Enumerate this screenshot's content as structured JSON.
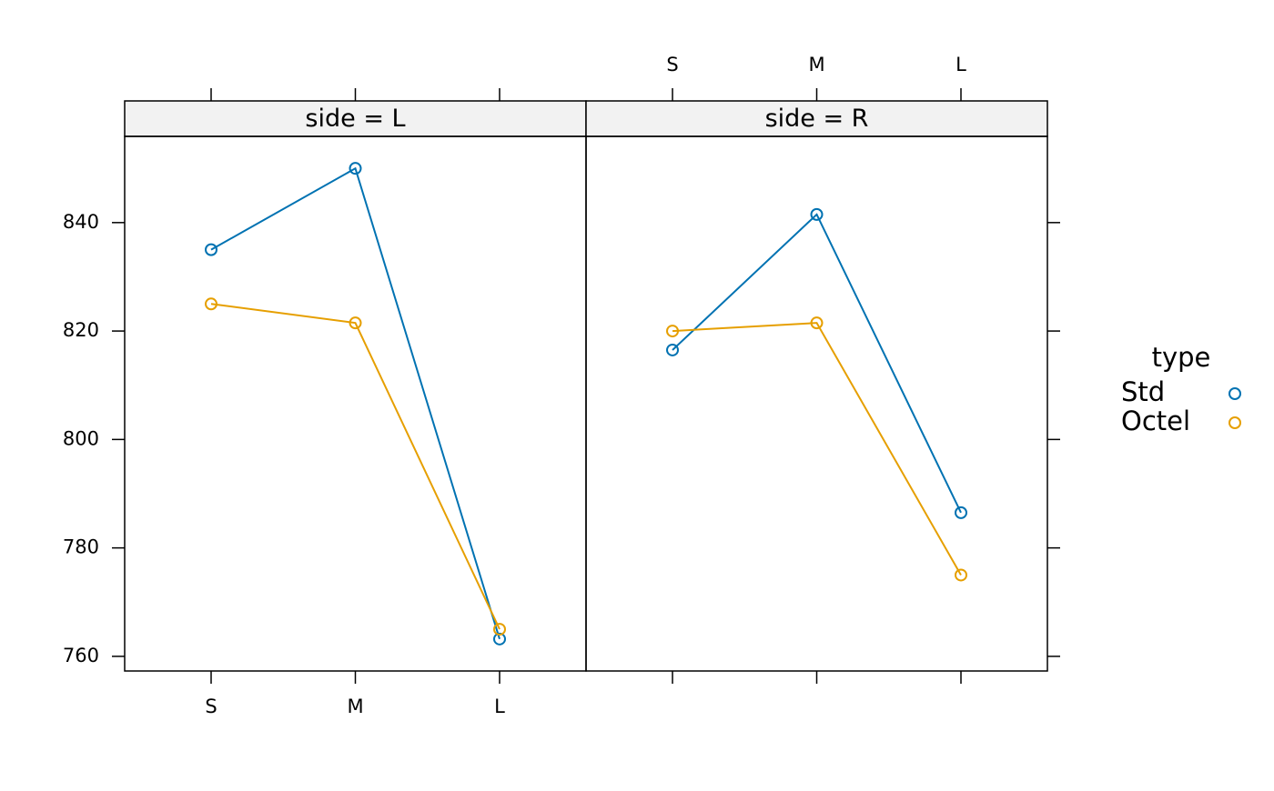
{
  "chart_data": {
    "type": "line",
    "categories": [
      "S",
      "M",
      "L"
    ],
    "ylim": [
      757.3,
      855.9
    ],
    "yticks": [
      760,
      780,
      800,
      820,
      840
    ],
    "legend_title": "type",
    "series": [
      {
        "name": "Std",
        "color": "#0072b2"
      },
      {
        "name": "Octel",
        "color": "#e69f00"
      }
    ],
    "panels": [
      {
        "title": "side = L",
        "series": [
          {
            "values": [
              835,
              850,
              763.2
            ]
          },
          {
            "values": [
              825,
              821.5,
              765
            ]
          }
        ]
      },
      {
        "title": "side = R",
        "series": [
          {
            "values": [
              816.5,
              841.5,
              786.5
            ]
          },
          {
            "values": [
              820,
              821.5,
              775
            ]
          }
        ]
      }
    ]
  }
}
